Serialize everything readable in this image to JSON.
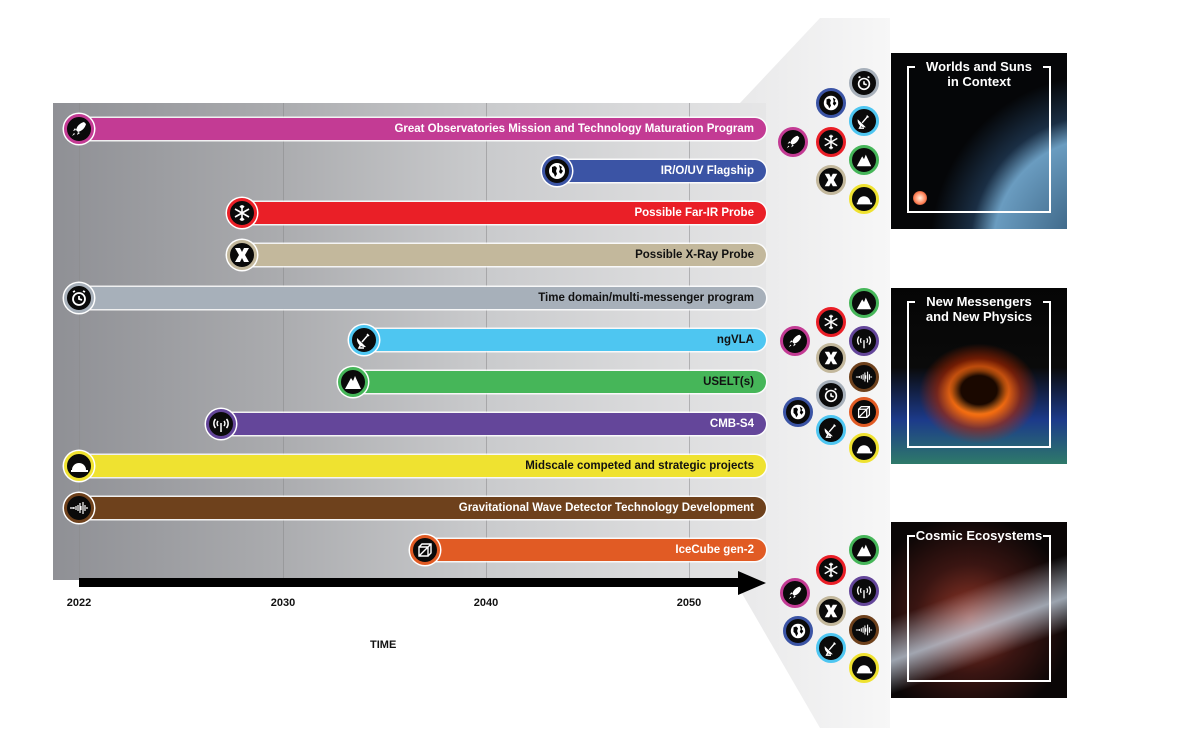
{
  "chart_data": {
    "type": "gantt-timeline",
    "title": "",
    "xlabel": "TIME",
    "ylabel": "",
    "x_ticks": [
      2022,
      2030,
      2040,
      2050
    ],
    "xlim": [
      2021,
      2054
    ],
    "grid": true,
    "series": [
      {
        "name": "Great Observatories Mission and Technology Maturation Program",
        "start": 2022,
        "end": 2054,
        "color": "#c33b94",
        "icon": "rocket-icon"
      },
      {
        "name": "IR/O/UV Flagship",
        "start": 2045.5,
        "end": 2054,
        "color": "#3b54a5",
        "icon": "globe-icon"
      },
      {
        "name": "Possible Far-IR Probe",
        "start": 2030,
        "end": 2054,
        "color": "#ea1f27",
        "icon": "snowflake-icon"
      },
      {
        "name": "Possible X-Ray Probe",
        "start": 2030,
        "end": 2054,
        "color": "#c3b89c",
        "icon": "x-ray-icon"
      },
      {
        "name": "Time domain/multi-messenger program",
        "start": 2022,
        "end": 2054,
        "color": "#a7b0ba",
        "icon": "alarm-clock-icon"
      },
      {
        "name": "ngVLA",
        "start": 2036,
        "end": 2054,
        "color": "#4ec6f1",
        "icon": "radio-dish-icon"
      },
      {
        "name": "USELT(s)",
        "start": 2035.5,
        "end": 2054,
        "color": "#46b659",
        "icon": "mountain-icon"
      },
      {
        "name": "CMB-S4",
        "start": 2029,
        "end": 2054,
        "color": "#64469a",
        "icon": "antenna-signal-icon"
      },
      {
        "name": "Midscale competed and strategic projects",
        "start": 2022,
        "end": 2054,
        "color": "#efe230",
        "icon": "hard-hat-icon"
      },
      {
        "name": "Gravitational Wave Detector Technology Development",
        "start": 2022,
        "end": 2054,
        "color": "#6e411c",
        "icon": "waveform-icon"
      },
      {
        "name": "IceCube gen-2",
        "start": 2039,
        "end": 2054,
        "color": "#e15b24",
        "icon": "cube-icon"
      }
    ]
  },
  "bars": [
    {
      "label": "Great Observatories Mission and Technology Maturation Program",
      "text_color": "#ffffff"
    },
    {
      "label": "IR/O/UV Flagship",
      "text_color": "#ffffff"
    },
    {
      "label": "Possible Far-IR Probe",
      "text_color": "#ffffff"
    },
    {
      "label": "Possible X-Ray Probe",
      "text_color": "#111111"
    },
    {
      "label": "Time domain/multi-messenger program",
      "text_color": "#111111"
    },
    {
      "label": "ngVLA",
      "text_color": "#111111"
    },
    {
      "label": "USELT(s)",
      "text_color": "#111111"
    },
    {
      "label": "CMB-S4",
      "text_color": "#ffffff"
    },
    {
      "label": "Midscale competed and strategic projects",
      "text_color": "#111111"
    },
    {
      "label": "Gravitational Wave Detector Technology Development",
      "text_color": "#ffffff"
    },
    {
      "label": "IceCube gen-2",
      "text_color": "#ffffff"
    }
  ],
  "axis": {
    "ticks": [
      "2022",
      "2030",
      "2040",
      "2050"
    ],
    "title": "TIME"
  },
  "themes": [
    {
      "title_line1": "Worlds and Suns",
      "title_line2": "in Context"
    },
    {
      "title_line1": "New Messengers",
      "title_line2": "and New Physics"
    },
    {
      "title_line1": "Cosmic Ecosystems",
      "title_line2": ""
    }
  ]
}
